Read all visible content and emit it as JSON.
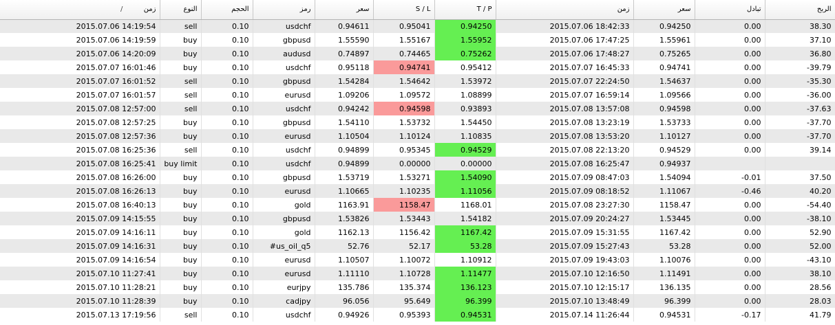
{
  "headers": {
    "time": "زمن",
    "type": "النوع",
    "volume": "الحجم",
    "symbol": "رمز",
    "price": "سعر",
    "sl": "S / L",
    "tp": "T / P",
    "close_time": "زمن",
    "close_price": "سعر",
    "swap": "تبادل",
    "profit": "الربح",
    "sort_indicator": "/"
  },
  "colors": {
    "tp_hit": "#65ef52",
    "sl_hit": "#fa9a9a",
    "row_alt": "#e9e9e9"
  },
  "rows": [
    {
      "time": "2015.07.06 14:19:54",
      "type": "sell",
      "volume": "0.10",
      "symbol": "usdchf",
      "price": "0.94611",
      "sl": "0.95041",
      "tp": "0.94250",
      "close_time": "2015.07.06 18:42:33",
      "close_price": "0.94250",
      "swap": "0.00",
      "profit": "38.30",
      "hit": "tp"
    },
    {
      "time": "2015.07.06 14:19:59",
      "type": "buy",
      "volume": "0.10",
      "symbol": "gbpusd",
      "price": "1.55590",
      "sl": "1.55167",
      "tp": "1.55952",
      "close_time": "2015.07.06 17:47:25",
      "close_price": "1.55961",
      "swap": "0.00",
      "profit": "37.10",
      "hit": "tp"
    },
    {
      "time": "2015.07.06 14:20:09",
      "type": "buy",
      "volume": "0.10",
      "symbol": "audusd",
      "price": "0.74897",
      "sl": "0.74465",
      "tp": "0.75262",
      "close_time": "2015.07.06 17:48:27",
      "close_price": "0.75265",
      "swap": "0.00",
      "profit": "36.80",
      "hit": "tp"
    },
    {
      "time": "2015.07.07 16:01:46",
      "type": "buy",
      "volume": "0.10",
      "symbol": "usdchf",
      "price": "0.95118",
      "sl": "0.94741",
      "tp": "0.95412",
      "close_time": "2015.07.07 16:45:33",
      "close_price": "0.94741",
      "swap": "0.00",
      "profit": "-39.79",
      "hit": "sl"
    },
    {
      "time": "2015.07.07 16:01:52",
      "type": "sell",
      "volume": "0.10",
      "symbol": "gbpusd",
      "price": "1.54284",
      "sl": "1.54642",
      "tp": "1.53972",
      "close_time": "2015.07.07 22:24:50",
      "close_price": "1.54637",
      "swap": "0.00",
      "profit": "-35.30",
      "hit": ""
    },
    {
      "time": "2015.07.07 16:01:57",
      "type": "sell",
      "volume": "0.10",
      "symbol": "eurusd",
      "price": "1.09206",
      "sl": "1.09572",
      "tp": "1.08899",
      "close_time": "2015.07.07 16:59:14",
      "close_price": "1.09566",
      "swap": "0.00",
      "profit": "-36.00",
      "hit": ""
    },
    {
      "time": "2015.07.08 12:57:00",
      "type": "sell",
      "volume": "0.10",
      "symbol": "usdchf",
      "price": "0.94242",
      "sl": "0.94598",
      "tp": "0.93893",
      "close_time": "2015.07.08 13:57:08",
      "close_price": "0.94598",
      "swap": "0.00",
      "profit": "-37.63",
      "hit": "sl"
    },
    {
      "time": "2015.07.08 12:57:25",
      "type": "buy",
      "volume": "0.10",
      "symbol": "gbpusd",
      "price": "1.54110",
      "sl": "1.53732",
      "tp": "1.54450",
      "close_time": "2015.07.08 13:23:19",
      "close_price": "1.53733",
      "swap": "0.00",
      "profit": "-37.70",
      "hit": ""
    },
    {
      "time": "2015.07.08 12:57:36",
      "type": "buy",
      "volume": "0.10",
      "symbol": "eurusd",
      "price": "1.10504",
      "sl": "1.10124",
      "tp": "1.10835",
      "close_time": "2015.07.08 13:53:20",
      "close_price": "1.10127",
      "swap": "0.00",
      "profit": "-37.70",
      "hit": ""
    },
    {
      "time": "2015.07.08 16:25:36",
      "type": "sell",
      "volume": "0.10",
      "symbol": "usdchf",
      "price": "0.94899",
      "sl": "0.95345",
      "tp": "0.94529",
      "close_time": "2015.07.08 22:13:20",
      "close_price": "0.94529",
      "swap": "0.00",
      "profit": "39.14",
      "hit": "tp"
    },
    {
      "time": "2015.07.08 16:25:41",
      "type": "buy limit",
      "volume": "0.10",
      "symbol": "usdchf",
      "price": "0.94899",
      "sl": "0.00000",
      "tp": "0.00000",
      "close_time": "2015.07.08 16:25:47",
      "close_price": "0.94937",
      "swap": "",
      "profit": "",
      "hit": ""
    },
    {
      "time": "2015.07.08 16:26:00",
      "type": "buy",
      "volume": "0.10",
      "symbol": "gbpusd",
      "price": "1.53719",
      "sl": "1.53271",
      "tp": "1.54090",
      "close_time": "2015.07.09 08:47:03",
      "close_price": "1.54094",
      "swap": "-0.01",
      "profit": "37.50",
      "hit": "tp"
    },
    {
      "time": "2015.07.08 16:26:13",
      "type": "buy",
      "volume": "0.10",
      "symbol": "eurusd",
      "price": "1.10665",
      "sl": "1.10235",
      "tp": "1.11056",
      "close_time": "2015.07.09 08:18:52",
      "close_price": "1.11067",
      "swap": "-0.46",
      "profit": "40.20",
      "hit": "tp"
    },
    {
      "time": "2015.07.08 16:40:13",
      "type": "buy",
      "volume": "0.10",
      "symbol": "gold",
      "price": "1163.91",
      "sl": "1158.47",
      "tp": "1168.01",
      "close_time": "2015.07.08 23:27:30",
      "close_price": "1158.47",
      "swap": "0.00",
      "profit": "-54.40",
      "hit": "sl"
    },
    {
      "time": "2015.07.09 14:15:55",
      "type": "buy",
      "volume": "0.10",
      "symbol": "gbpusd",
      "price": "1.53826",
      "sl": "1.53443",
      "tp": "1.54182",
      "close_time": "2015.07.09 20:24:27",
      "close_price": "1.53445",
      "swap": "0.00",
      "profit": "-38.10",
      "hit": ""
    },
    {
      "time": "2015.07.09 14:16:11",
      "type": "buy",
      "volume": "0.10",
      "symbol": "gold",
      "price": "1162.13",
      "sl": "1156.42",
      "tp": "1167.42",
      "close_time": "2015.07.09 15:31:55",
      "close_price": "1167.42",
      "swap": "0.00",
      "profit": "52.90",
      "hit": "tp"
    },
    {
      "time": "2015.07.09 14:16:31",
      "type": "buy",
      "volume": "0.10",
      "symbol": "#us_oil_q5",
      "price": "52.76",
      "sl": "52.17",
      "tp": "53.28",
      "close_time": "2015.07.09 15:27:43",
      "close_price": "53.28",
      "swap": "0.00",
      "profit": "52.00",
      "hit": "tp"
    },
    {
      "time": "2015.07.09 14:16:54",
      "type": "buy",
      "volume": "0.10",
      "symbol": "eurusd",
      "price": "1.10507",
      "sl": "1.10072",
      "tp": "1.10912",
      "close_time": "2015.07.09 19:43:03",
      "close_price": "1.10076",
      "swap": "0.00",
      "profit": "-43.10",
      "hit": ""
    },
    {
      "time": "2015.07.10 11:27:41",
      "type": "buy",
      "volume": "0.10",
      "symbol": "eurusd",
      "price": "1.11110",
      "sl": "1.10728",
      "tp": "1.11477",
      "close_time": "2015.07.10 12:16:50",
      "close_price": "1.11491",
      "swap": "0.00",
      "profit": "38.10",
      "hit": "tp"
    },
    {
      "time": "2015.07.10 11:28:21",
      "type": "buy",
      "volume": "0.10",
      "symbol": "eurjpy",
      "price": "135.786",
      "sl": "135.374",
      "tp": "136.123",
      "close_time": "2015.07.10 12:15:17",
      "close_price": "136.135",
      "swap": "0.00",
      "profit": "28.56",
      "hit": "tp"
    },
    {
      "time": "2015.07.10 11:28:39",
      "type": "buy",
      "volume": "0.10",
      "symbol": "cadjpy",
      "price": "96.056",
      "sl": "95.649",
      "tp": "96.399",
      "close_time": "2015.07.10 13:48:49",
      "close_price": "96.399",
      "swap": "0.00",
      "profit": "28.03",
      "hit": "tp"
    },
    {
      "time": "2015.07.13 17:19:56",
      "type": "sell",
      "volume": "0.10",
      "symbol": "usdchf",
      "price": "0.94926",
      "sl": "0.95393",
      "tp": "0.94531",
      "close_time": "2015.07.14 11:26:44",
      "close_price": "0.94531",
      "swap": "-0.17",
      "profit": "41.79",
      "hit": "tp"
    }
  ]
}
